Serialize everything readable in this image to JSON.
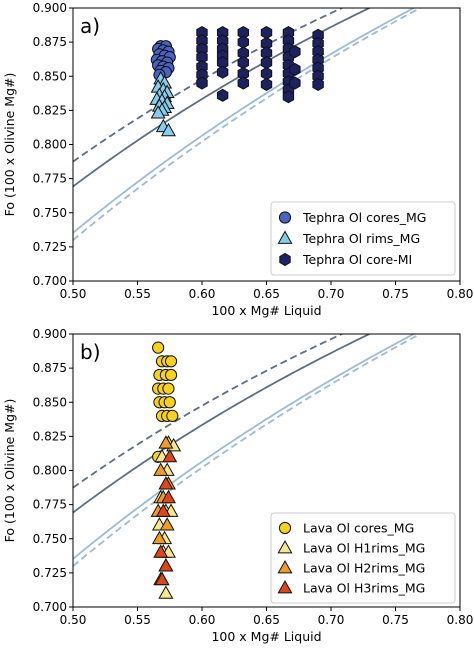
{
  "colors": {
    "eq_dark": "#5c6f82",
    "eq_light": "#9dbbd6",
    "blue_cores": "#4a62c3",
    "light_blue_rims": "#87ccea",
    "navy_mi": "#1c2260",
    "yellow_cores": "#f8d11c",
    "pale_yellow_h1": "#f6e78e",
    "orange_h2": "#f29b22",
    "red_h3": "#dc4619"
  },
  "chart_data": [
    {
      "type": "scatter",
      "panel_label": "a)",
      "xlabel": "100 x Mg# Liquid",
      "ylabel": "Fo (100 x Olivine Mg#)",
      "xlim": [
        0.5,
        0.8
      ],
      "ylim": [
        0.7,
        0.9
      ],
      "xticks": [
        "0.50",
        "0.55",
        "0.60",
        "0.65",
        "0.70",
        "0.75",
        "0.80"
      ],
      "yticks": [
        "0.700",
        "0.725",
        "0.750",
        "0.775",
        "0.800",
        "0.825",
        "0.850",
        "0.875",
        "0.900"
      ],
      "legend_position": "lower-right",
      "equilibrium_curves": [
        {
          "style": "solid",
          "color": "eq_dark",
          "kd": 0.3
        },
        {
          "style": "dashed",
          "color": "eq_dark",
          "kd": 0.27
        },
        {
          "style": "solid",
          "color": "eq_light",
          "kd": 0.36
        },
        {
          "style": "dashed",
          "color": "eq_light",
          "kd": 0.37
        }
      ],
      "series": [
        {
          "name": "Tephra Ol cores_MG",
          "marker": "circle",
          "color": "blue_cores",
          "points": [
            [
              0.568,
              0.872
            ],
            [
              0.572,
              0.872
            ],
            [
              0.566,
              0.87
            ],
            [
              0.57,
              0.869
            ],
            [
              0.574,
              0.868
            ],
            [
              0.567,
              0.866
            ],
            [
              0.571,
              0.865
            ],
            [
              0.575,
              0.864
            ],
            [
              0.565,
              0.862
            ],
            [
              0.569,
              0.861
            ],
            [
              0.573,
              0.86
            ],
            [
              0.566,
              0.858
            ],
            [
              0.57,
              0.857
            ],
            [
              0.574,
              0.856
            ],
            [
              0.568,
              0.854
            ],
            [
              0.572,
              0.853
            ],
            [
              0.567,
              0.851
            ]
          ]
        },
        {
          "name": "Tephra Ol rims_MG",
          "marker": "triangle",
          "color": "light_blue_rims",
          "points": [
            [
              0.568,
              0.848
            ],
            [
              0.571,
              0.845
            ],
            [
              0.566,
              0.842
            ],
            [
              0.57,
              0.84
            ],
            [
              0.573,
              0.838
            ],
            [
              0.567,
              0.836
            ],
            [
              0.571,
              0.835
            ],
            [
              0.565,
              0.833
            ],
            [
              0.569,
              0.832
            ],
            [
              0.573,
              0.83
            ],
            [
              0.567,
              0.828
            ],
            [
              0.571,
              0.827
            ],
            [
              0.569,
              0.825
            ],
            [
              0.566,
              0.823
            ],
            [
              0.57,
              0.813
            ],
            [
              0.574,
              0.81
            ]
          ]
        },
        {
          "name": "Tephra Ol core-MI",
          "marker": "hexagon",
          "color": "navy_mi",
          "points": [
            [
              0.6,
              0.882
            ],
            [
              0.6,
              0.876
            ],
            [
              0.6,
              0.87
            ],
            [
              0.6,
              0.864
            ],
            [
              0.6,
              0.857
            ],
            [
              0.6,
              0.851
            ],
            [
              0.6,
              0.845
            ],
            [
              0.616,
              0.882
            ],
            [
              0.616,
              0.876
            ],
            [
              0.616,
              0.87
            ],
            [
              0.616,
              0.865
            ],
            [
              0.616,
              0.86
            ],
            [
              0.616,
              0.853
            ],
            [
              0.616,
              0.836
            ],
            [
              0.632,
              0.882
            ],
            [
              0.632,
              0.875
            ],
            [
              0.632,
              0.867
            ],
            [
              0.632,
              0.86
            ],
            [
              0.632,
              0.852
            ],
            [
              0.632,
              0.845
            ],
            [
              0.65,
              0.882
            ],
            [
              0.65,
              0.874
            ],
            [
              0.65,
              0.867
            ],
            [
              0.65,
              0.86
            ],
            [
              0.65,
              0.852
            ],
            [
              0.65,
              0.844
            ],
            [
              0.667,
              0.882
            ],
            [
              0.667,
              0.876
            ],
            [
              0.667,
              0.87
            ],
            [
              0.667,
              0.864
            ],
            [
              0.667,
              0.858
            ],
            [
              0.667,
              0.852
            ],
            [
              0.667,
              0.846
            ],
            [
              0.667,
              0.84
            ],
            [
              0.667,
              0.835
            ],
            [
              0.672,
              0.868
            ],
            [
              0.672,
              0.855
            ],
            [
              0.672,
              0.845
            ],
            [
              0.69,
              0.88
            ],
            [
              0.69,
              0.874
            ],
            [
              0.69,
              0.868
            ],
            [
              0.69,
              0.862
            ],
            [
              0.69,
              0.856
            ],
            [
              0.69,
              0.85
            ],
            [
              0.69,
              0.844
            ]
          ]
        }
      ]
    },
    {
      "type": "scatter",
      "panel_label": "b)",
      "xlabel": "100 x Mg# Liquid",
      "ylabel": "Fo (100 x Olivine Mg#)",
      "xlim": [
        0.5,
        0.8
      ],
      "ylim": [
        0.7,
        0.9
      ],
      "xticks": [
        "0.50",
        "0.55",
        "0.60",
        "0.65",
        "0.70",
        "0.75",
        "0.80"
      ],
      "yticks": [
        "0.700",
        "0.725",
        "0.750",
        "0.775",
        "0.800",
        "0.825",
        "0.850",
        "0.875",
        "0.900"
      ],
      "legend_position": "lower-right",
      "equilibrium_curves": [
        {
          "style": "solid",
          "color": "eq_dark",
          "kd": 0.3
        },
        {
          "style": "dashed",
          "color": "eq_dark",
          "kd": 0.27
        },
        {
          "style": "solid",
          "color": "eq_light",
          "kd": 0.36
        },
        {
          "style": "dashed",
          "color": "eq_light",
          "kd": 0.37
        }
      ],
      "series": [
        {
          "name": "Lava Ol cores_MG",
          "marker": "circle",
          "color": "yellow_cores",
          "points": [
            [
              0.566,
              0.89
            ],
            [
              0.569,
              0.88
            ],
            [
              0.573,
              0.88
            ],
            [
              0.576,
              0.88
            ],
            [
              0.567,
              0.87
            ],
            [
              0.572,
              0.87
            ],
            [
              0.576,
              0.87
            ],
            [
              0.566,
              0.86
            ],
            [
              0.57,
              0.86
            ],
            [
              0.574,
              0.86
            ],
            [
              0.567,
              0.85
            ],
            [
              0.571,
              0.85
            ],
            [
              0.575,
              0.85
            ],
            [
              0.569,
              0.84
            ],
            [
              0.573,
              0.84
            ],
            [
              0.577,
              0.84
            ],
            [
              0.566,
              0.81
            ]
          ]
        },
        {
          "name": "Lava Ol H1rims_MG",
          "marker": "triangle",
          "color": "pale_yellow_h1",
          "points": [
            [
              0.574,
              0.82
            ],
            [
              0.578,
              0.818
            ],
            [
              0.569,
              0.81
            ],
            [
              0.573,
              0.8
            ],
            [
              0.568,
              0.78
            ],
            [
              0.572,
              0.77
            ],
            [
              0.576,
              0.77
            ],
            [
              0.567,
              0.76
            ],
            [
              0.571,
              0.75
            ],
            [
              0.57,
              0.74
            ],
            [
              0.574,
              0.74
            ],
            [
              0.569,
              0.72
            ],
            [
              0.572,
              0.71
            ]
          ]
        },
        {
          "name": "Lava Ol H2rims_MG",
          "marker": "triangle",
          "color": "orange_h2",
          "points": [
            [
              0.572,
              0.82
            ],
            [
              0.568,
              0.8
            ],
            [
              0.574,
              0.79
            ],
            [
              0.57,
              0.78
            ],
            [
              0.566,
              0.77
            ],
            [
              0.573,
              0.76
            ],
            [
              0.567,
              0.75
            ],
            [
              0.572,
              0.73
            ],
            [
              0.568,
              0.72
            ]
          ]
        },
        {
          "name": "Lava Ol H3rims_MG",
          "marker": "triangle",
          "color": "red_h3",
          "points": [
            [
              0.575,
              0.81
            ],
            [
              0.572,
              0.79
            ],
            [
              0.574,
              0.78
            ],
            [
              0.57,
              0.77
            ],
            [
              0.568,
              0.74
            ],
            [
              0.572,
              0.73
            ],
            [
              0.569,
              0.72
            ]
          ]
        }
      ]
    }
  ]
}
